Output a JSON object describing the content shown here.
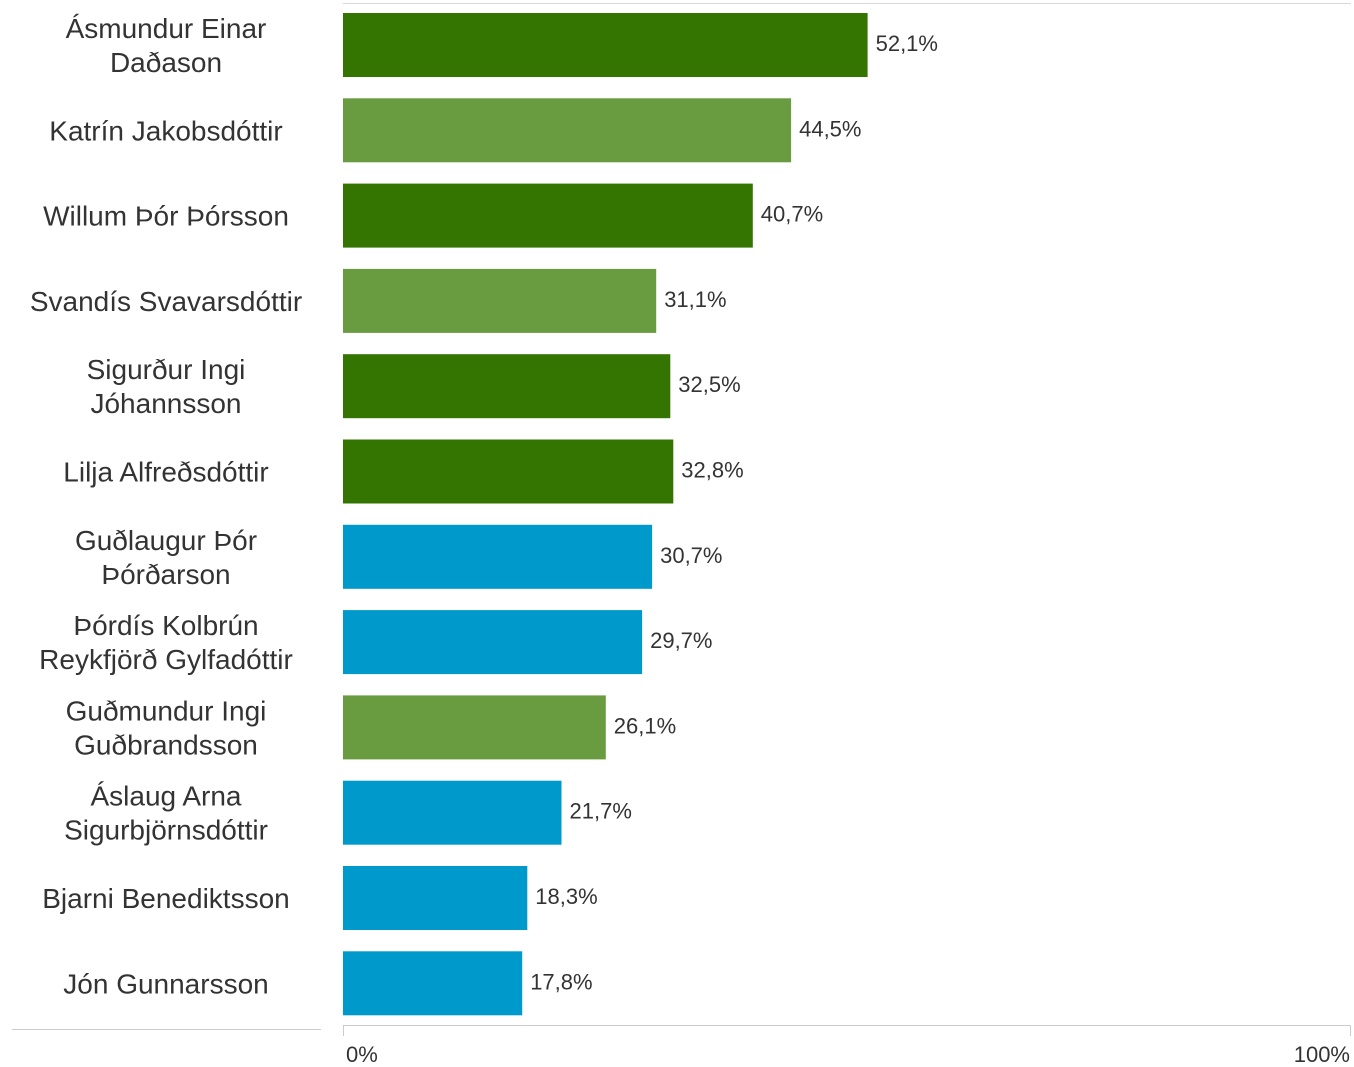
{
  "chart_data": {
    "type": "bar",
    "orientation": "horizontal",
    "categories": [
      [
        "Ásmundur Einar",
        "Daðason"
      ],
      [
        "Katrín Jakobsdóttir"
      ],
      [
        "Willum Þór Þórsson"
      ],
      [
        "Svandís Svavarsdóttir"
      ],
      [
        "Sigurður Ingi",
        "Jóhannsson"
      ],
      [
        "Lilja Alfreðsdóttir"
      ],
      [
        "Guðlaugur Þór",
        "Þórðarson"
      ],
      [
        "Þórdís Kolbrún",
        "Reykfjörð Gylfadóttir"
      ],
      [
        "Guðmundur Ingi",
        "Guðbrandsson"
      ],
      [
        "Áslaug Arna",
        "Sigurbjörnsdóttir"
      ],
      [
        "Bjarni Benediktsson"
      ],
      [
        "Jón Gunnarsson"
      ]
    ],
    "values": [
      52.1,
      44.5,
      40.7,
      31.1,
      32.5,
      32.8,
      30.7,
      29.7,
      26.1,
      21.7,
      18.3,
      17.8
    ],
    "value_labels": [
      "52,1%",
      "44,5%",
      "40,7%",
      "31,1%",
      "32,5%",
      "32,8%",
      "30,7%",
      "29,7%",
      "26,1%",
      "21,7%",
      "18,3%",
      "17,8%"
    ],
    "bar_colors": [
      "#337500",
      "#699c41",
      "#337500",
      "#699c41",
      "#337500",
      "#337500",
      "#0099cc",
      "#0099cc",
      "#699c41",
      "#0099cc",
      "#0099cc",
      "#0099cc"
    ],
    "xlim": [
      0,
      100
    ],
    "x_tick_labels": [
      "0%",
      "100%"
    ],
    "grid": false,
    "title": "",
    "xlabel": "",
    "ylabel": ""
  }
}
